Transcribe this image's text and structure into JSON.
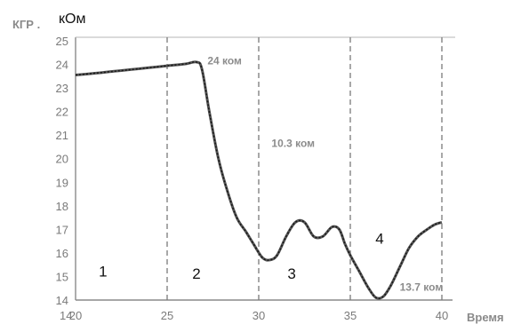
{
  "chart_data": {
    "type": "line",
    "ylabel_left": "КГР .",
    "ylabel_unit": "кОм",
    "xlabel": "Время",
    "x_origin_label": "14",
    "ylim": [
      14,
      25
    ],
    "xlim": [
      20,
      40
    ],
    "y_ticks": [
      14,
      15,
      16,
      17,
      18,
      19,
      20,
      21,
      22,
      23,
      24,
      25
    ],
    "x_ticks": [
      20,
      25,
      30,
      35,
      40
    ],
    "vertical_dividers": [
      25,
      30,
      35,
      40
    ],
    "grid": false,
    "series": [
      {
        "x": [
          20,
          21,
          22,
          23,
          24,
          25,
          26,
          26.6,
          26.9,
          27.3,
          27.8,
          28.3,
          28.8,
          29.3,
          29.7,
          30.2,
          30.6,
          31,
          31.5,
          32,
          32.5,
          33,
          33.5,
          34,
          34.4,
          34.7,
          35,
          35.5,
          36,
          36.4,
          36.8,
          37.2,
          37.7,
          38.2,
          38.7,
          39.2,
          39.6,
          40
        ],
        "y": [
          23.55,
          23.62,
          23.7,
          23.78,
          23.86,
          23.94,
          24.02,
          24.1,
          23.8,
          22.0,
          20.0,
          18.6,
          17.5,
          16.9,
          16.4,
          15.8,
          15.7,
          15.9,
          16.7,
          17.3,
          17.3,
          16.7,
          16.7,
          17.1,
          17.0,
          16.4,
          15.9,
          15.2,
          14.5,
          14.1,
          14.15,
          14.6,
          15.4,
          16.2,
          16.7,
          17.0,
          17.2,
          17.3
        ]
      }
    ],
    "regions": [
      {
        "label": "1",
        "x": 21.5,
        "y": 15.0
      },
      {
        "label": "2",
        "x": 26.6,
        "y": 14.9
      },
      {
        "label": "3",
        "x": 31.8,
        "y": 14.9
      },
      {
        "label": "4",
        "x": 36.6,
        "y": 16.4
      }
    ],
    "annotations": [
      {
        "text": "24 ком",
        "x": 27.2,
        "y": 24.0
      },
      {
        "text": "10.3 ком",
        "x": 30.7,
        "y": 20.5
      },
      {
        "text": "13.7 ком",
        "x": 37.7,
        "y": 14.4
      }
    ]
  }
}
